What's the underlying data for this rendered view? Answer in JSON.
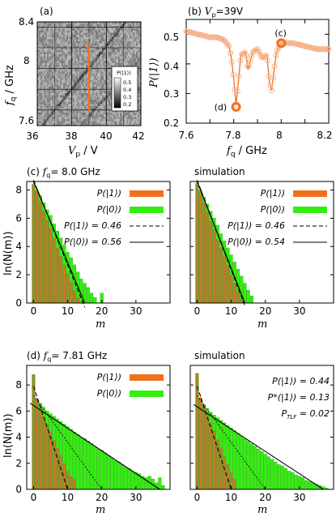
{
  "panels": {
    "a": {
      "label": "(a)",
      "xlabel_var": "V",
      "xlabel_sub": "p",
      "xlabel_unit": " / V",
      "ylabel_var": "f",
      "ylabel_sub": "q",
      "ylabel_unit": " / GHz",
      "colorbar_title": "P(|1⟩)",
      "colorbar_ticks": [
        "0.5",
        "0.4",
        "0.3",
        "0.2"
      ]
    },
    "b": {
      "label": "(b) ",
      "title_var": "V",
      "title_sub": "p",
      "title_val": "=39V",
      "ylabel": "P(|1⟩)",
      "xlabel_var": "f",
      "xlabel_sub": "q",
      "xlabel_unit": " / GHz",
      "marker_c": "(c)",
      "marker_d": "(d)"
    },
    "c": {
      "label": "(c) ",
      "title_var": "f",
      "title_sub": "q",
      "title_val": "= 8.0 GHz",
      "sim_title": "simulation",
      "legend_left": [
        "P(|1⟩)",
        "P(|0⟩)",
        "P(|1⟩) = 0.46",
        "P(|0⟩) = 0.56"
      ],
      "legend_right": [
        "P(|1⟩)",
        "P(|0⟩)",
        "P(|1⟩) = 0.46",
        "P(|0⟩) = 0.54"
      ]
    },
    "d": {
      "label": "(d) ",
      "title_var": "f",
      "title_sub": "q",
      "title_val": "= 7.81 GHz",
      "sim_title": "simulation",
      "legend_left": [
        "P(|1⟩)",
        "P(|0⟩)"
      ],
      "legend_right": [
        "P(|1⟩) = 0.44",
        "P*(|1⟩) = 0.13",
        "P_TLF = 0.02"
      ],
      "legend_right_parts": {
        "p1": "P(|1⟩) = 0.44",
        "pstar_a": "P",
        "pstar_b": "*(|1⟩) = 0.13",
        "ptlf_a": "P",
        "ptlf_sub": "TLF",
        "ptlf_b": " = 0.02"
      }
    },
    "ylabel_hist": "ln(N(m))",
    "xlabel_hist": "m"
  },
  "colors": {
    "orange": "#f07020",
    "green": "#33ee11",
    "olive": "#8c8a2a",
    "vline": "#ff6a1a"
  },
  "chart_data": [
    {
      "panel": "a",
      "type": "heatmap",
      "xlabel": "Vp / V",
      "ylabel": "fq / GHz",
      "xlim": [
        36,
        42
      ],
      "ylim": [
        7.45,
        8.45
      ],
      "xticks": [
        "36",
        "38",
        "40",
        "42"
      ],
      "yticks": [
        "7.6",
        "8",
        "8.4"
      ],
      "colorbar_range": [
        0.2,
        0.55
      ],
      "resonance_lines": [
        {
          "x": [
            36,
            42
          ],
          "y": [
            7.39,
            8.63
          ]
        },
        {
          "x": [
            38.5,
            42
          ],
          "y": [
            7.45,
            8.1
          ]
        }
      ],
      "cut_vp": 39
    },
    {
      "panel": "b",
      "type": "line",
      "xlabel": "fq / GHz",
      "ylabel": "P(|1⟩)",
      "xlim": [
        7.6,
        8.2
      ],
      "ylim": [
        0.2,
        0.55
      ],
      "xticks": [
        "7.6",
        "7.8",
        "8",
        "8.2"
      ],
      "yticks": [
        "0.2",
        "0.3",
        "0.4",
        "0.5"
      ],
      "x": [
        7.6,
        7.65,
        7.7,
        7.73,
        7.76,
        7.78,
        7.79,
        7.8,
        7.81,
        7.82,
        7.83,
        7.85,
        7.86,
        7.88,
        7.9,
        7.92,
        7.94,
        7.95,
        7.96,
        7.97,
        7.98,
        8.0,
        8.05,
        8.1,
        8.15,
        8.2
      ],
      "y": [
        0.51,
        0.5,
        0.49,
        0.49,
        0.48,
        0.46,
        0.42,
        0.35,
        0.26,
        0.34,
        0.43,
        0.44,
        0.38,
        0.44,
        0.45,
        0.42,
        0.43,
        0.34,
        0.31,
        0.38,
        0.44,
        0.47,
        0.47,
        0.46,
        0.45,
        0.45
      ],
      "markers": [
        {
          "name": "(c)",
          "x": 8.0,
          "y": 0.47
        },
        {
          "name": "(d)",
          "x": 7.81,
          "y": 0.255
        }
      ]
    },
    {
      "panel": "c-left",
      "type": "bar",
      "xlabel": "m",
      "ylabel": "ln(N(m))",
      "xlim": [
        -2,
        40
      ],
      "ylim": [
        0,
        8.6
      ],
      "xticks": [
        "0",
        "10",
        "20",
        "30"
      ],
      "yticks": [
        "0",
        "2",
        "4",
        "6",
        "8"
      ],
      "series": [
        {
          "name": "P(|1⟩)",
          "values": [
            8.5,
            7.9,
            7.2,
            6.5,
            5.9,
            5.3,
            4.6,
            3.9,
            3.3,
            2.7,
            2.1,
            1.5,
            0.9,
            0.4
          ]
        },
        {
          "name": "P(|0⟩)",
          "values": [
            8.4,
            8.0,
            7.6,
            7.1,
            6.6,
            6.2,
            5.6,
            5.1,
            4.6,
            4.1,
            3.6,
            3.2,
            2.7,
            2.2,
            1.7,
            1.4,
            1.1,
            0.7,
            0.4,
            0.0,
            0.7
          ]
        },
        {
          "name": "P(|1⟩) = 0.46",
          "x": [
            0,
            15
          ],
          "y": [
            8.7,
            -0.3
          ]
        },
        {
          "name": "P(|0⟩) = 0.56",
          "x": [
            0,
            15
          ],
          "y": [
            8.6,
            0.0
          ]
        }
      ]
    },
    {
      "panel": "c-right",
      "type": "bar",
      "xlabel": "m",
      "xlim": [
        -2,
        40
      ],
      "ylim": [
        0,
        8.6
      ],
      "xticks": [
        "0",
        "10",
        "20",
        "30"
      ],
      "series": [
        {
          "name": "P(|1⟩)",
          "values": [
            8.4,
            7.8,
            7.1,
            6.5,
            5.8,
            5.2,
            4.5,
            3.9,
            3.3,
            2.7,
            2.0,
            1.4,
            0.8,
            0.3
          ]
        },
        {
          "name": "P(|0⟩)",
          "values": [
            8.5,
            8.0,
            7.5,
            7.0,
            6.5,
            6.0,
            5.5,
            4.9,
            4.4,
            3.9,
            3.4,
            2.9,
            2.4,
            1.9,
            1.4,
            0.9,
            0.5
          ]
        },
        {
          "name": "P(|1⟩) = 0.46",
          "x": [
            0,
            14
          ],
          "y": [
            8.7,
            -0.2
          ]
        },
        {
          "name": "P(|0⟩) = 0.54",
          "x": [
            0,
            14
          ],
          "y": [
            8.6,
            0.0
          ]
        }
      ]
    },
    {
      "panel": "d-left",
      "type": "bar",
      "xlabel": "m",
      "ylabel": "ln(N(m))",
      "xlim": [
        -2,
        40
      ],
      "ylim": [
        0,
        9.5
      ],
      "xticks": [
        "0",
        "10",
        "20",
        "30"
      ],
      "yticks": [
        "0",
        "2",
        "4",
        "6",
        "8"
      ],
      "series": [
        {
          "name": "P(|1⟩)",
          "values": [
            8.8,
            7.0,
            6.2,
            5.6,
            5.0,
            4.4,
            3.8,
            3.2,
            2.6,
            2.0,
            1.4,
            1.0,
            0.8
          ]
        },
        {
          "name": "P(|0⟩)",
          "values": [
            8.8,
            6.9,
            6.6,
            6.3,
            6.0,
            5.8,
            5.6,
            5.4,
            5.2,
            5.0,
            4.8,
            4.6,
            4.4,
            4.2,
            4.0,
            3.9,
            3.7,
            3.5,
            3.3,
            3.1,
            3.0,
            2.8,
            2.6,
            2.4,
            2.2,
            2.1,
            1.9,
            1.7,
            1.6,
            1.4,
            1.3,
            1.2,
            1.0,
            0.9,
            1.0,
            0.8,
            0.5,
            0.9,
            0.3
          ]
        },
        {
          "name": "fit slow",
          "x": [
            -1,
            37
          ],
          "y": [
            6.6,
            0.0
          ]
        },
        {
          "name": "fit fast",
          "x": [
            0,
            10
          ],
          "y": [
            7.9,
            0.0
          ]
        },
        {
          "name": "fit medium",
          "x": [
            0,
            20
          ],
          "y": [
            7.2,
            0.0
          ]
        }
      ]
    },
    {
      "panel": "d-right",
      "type": "bar",
      "xlabel": "m",
      "xlim": [
        -2,
        40
      ],
      "ylim": [
        0,
        9.5
      ],
      "xticks": [
        "0",
        "10",
        "20",
        "30"
      ],
      "series": [
        {
          "name": "P(|1⟩)",
          "values": [
            8.9,
            7.3,
            6.5,
            5.8,
            5.1,
            4.5,
            3.8,
            3.2,
            2.5,
            1.9,
            1.3,
            0.8
          ]
        },
        {
          "name": "P(|0⟩)",
          "values": [
            8.9,
            7.0,
            6.5,
            6.2,
            5.9,
            5.7,
            5.5,
            5.3,
            5.1,
            4.9,
            4.7,
            4.5,
            4.3,
            4.1,
            3.9,
            3.7,
            3.5,
            3.3,
            3.1,
            2.9,
            2.7,
            2.5,
            2.3,
            2.1,
            1.9,
            1.8,
            1.6,
            1.4,
            1.3,
            1.1,
            1.0,
            0.9,
            0.7,
            0.6,
            0.5,
            0.4,
            0.3,
            0.2,
            0.1
          ]
        },
        {
          "name": "fit slow",
          "x": [
            -1,
            37
          ],
          "y": [
            6.5,
            0.0
          ]
        },
        {
          "name": "fit fast",
          "x": [
            0,
            10
          ],
          "y": [
            7.9,
            0.0
          ]
        },
        {
          "name": "fit medium",
          "x": [
            0,
            20
          ],
          "y": [
            7.2,
            0.0
          ]
        }
      ]
    }
  ]
}
